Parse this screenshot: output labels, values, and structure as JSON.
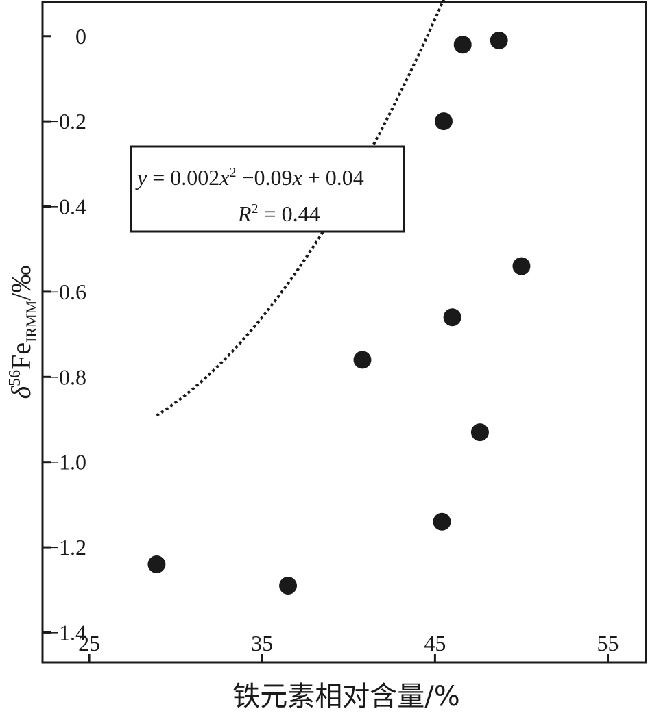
{
  "chart_data": {
    "type": "scatter",
    "x": [
      28.9,
      36.5,
      40.8,
      45.4,
      45.5,
      46.0,
      46.6,
      47.6,
      48.7,
      50.0
    ],
    "y": [
      -1.24,
      -1.29,
      -0.76,
      -1.14,
      -0.2,
      -0.66,
      -0.02,
      -0.93,
      -0.01,
      -0.54
    ],
    "xlim": [
      22.3,
      57.2
    ],
    "ylim": [
      -1.47,
      0.08
    ],
    "xticks": [
      25,
      35,
      45,
      55
    ],
    "xtick_labels": [
      "25",
      "35",
      "45",
      "55"
    ],
    "yticks": [
      0,
      -0.2,
      -0.4,
      -0.6,
      -0.8,
      -1.0,
      -1.2,
      -1.4
    ],
    "ytick_labels": [
      "0",
      "−0.2",
      "−0.4",
      "−0.6",
      "−0.8",
      "−1.0",
      "−1.2",
      "−1.4"
    ],
    "xlabel": "铁元素相对含量/%",
    "ylabel": {
      "delta": "δ",
      "superscript": "56",
      "element": "Fe",
      "subscript": "IRMM",
      "unit": "/‰"
    },
    "trendline": {
      "type": "polynomial",
      "coefficients": [
        0.002,
        -0.09,
        0.04
      ],
      "x_range": [
        28.9,
        49.6
      ],
      "style": "dotted"
    },
    "annotation": {
      "equation": {
        "y": "y",
        "eq1": " = 0.002",
        "x1": "x",
        "sup": "2",
        "eq2": " −0.09",
        "x2": "x",
        "eq3": " + 0.04"
      },
      "r2": {
        "r": "R",
        "sup": "2",
        "eq": " = 0.44"
      }
    },
    "grid": false,
    "legend": "none",
    "colors": {
      "points": "#1a1a1a",
      "axes": "#1a1a1a",
      "trendline": "#1a1a1a"
    }
  }
}
